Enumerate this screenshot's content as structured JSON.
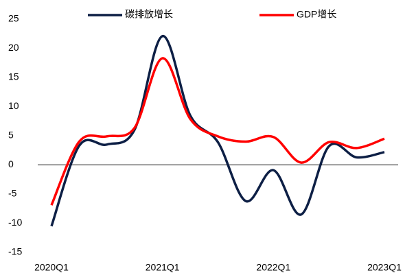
{
  "chart_data": {
    "type": "line",
    "categories": [
      "2020Q1",
      null,
      null,
      null,
      "2021Q1",
      null,
      null,
      null,
      "2022Q1",
      null,
      null,
      null,
      "2023Q1"
    ],
    "series": [
      {
        "name": "碳排放增长",
        "color": "#0d1f45",
        "values": [
          -10.5,
          3.3,
          3.5,
          6.1,
          22.1,
          8.5,
          3.9,
          -6.2,
          -0.9,
          -8.5,
          3.2,
          1.3,
          2.2
        ]
      },
      {
        "name": "GDP增长",
        "color": "#ff0000",
        "values": [
          -6.9,
          4.0,
          4.9,
          6.4,
          18.3,
          7.9,
          4.9,
          4.0,
          4.8,
          0.4,
          3.9,
          2.9,
          4.5
        ]
      }
    ],
    "ylim": [
      -15,
      25
    ],
    "yticks": [
      -15,
      -10,
      -5,
      0,
      5,
      10,
      15,
      20,
      25
    ],
    "legend": "top"
  }
}
